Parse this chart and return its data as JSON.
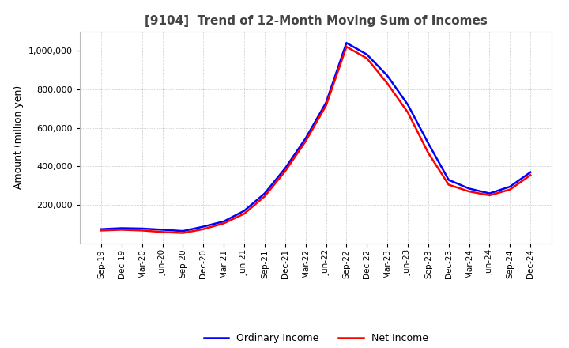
{
  "title": "[9104]  Trend of 12-Month Moving Sum of Incomes",
  "ylabel": "Amount (million yen)",
  "ylim": [
    0,
    1100000
  ],
  "yticks": [
    200000,
    400000,
    600000,
    800000,
    1000000
  ],
  "background_color": "#ffffff",
  "plot_bg_color": "#ffffff",
  "grid_color": "#aaaaaa",
  "line_color_ordinary": "#0000ff",
  "line_color_net": "#ff0000",
  "legend_labels": [
    "Ordinary Income",
    "Net Income"
  ],
  "x_labels": [
    "Sep-19",
    "Dec-19",
    "Mar-20",
    "Jun-20",
    "Sep-20",
    "Dec-20",
    "Mar-21",
    "Jun-21",
    "Sep-21",
    "Dec-21",
    "Mar-22",
    "Jun-22",
    "Sep-22",
    "Dec-22",
    "Mar-23",
    "Jun-23",
    "Sep-23",
    "Dec-23",
    "Mar-24",
    "Jun-24",
    "Sep-24",
    "Dec-24"
  ],
  "ordinary_income": [
    75000,
    80000,
    78000,
    72000,
    65000,
    88000,
    115000,
    170000,
    260000,
    390000,
    545000,
    730000,
    1040000,
    980000,
    870000,
    720000,
    520000,
    330000,
    285000,
    260000,
    295000,
    370000
  ],
  "net_income": [
    68000,
    72000,
    68000,
    60000,
    55000,
    75000,
    105000,
    155000,
    245000,
    375000,
    530000,
    715000,
    1020000,
    960000,
    830000,
    680000,
    470000,
    305000,
    270000,
    250000,
    280000,
    355000
  ]
}
